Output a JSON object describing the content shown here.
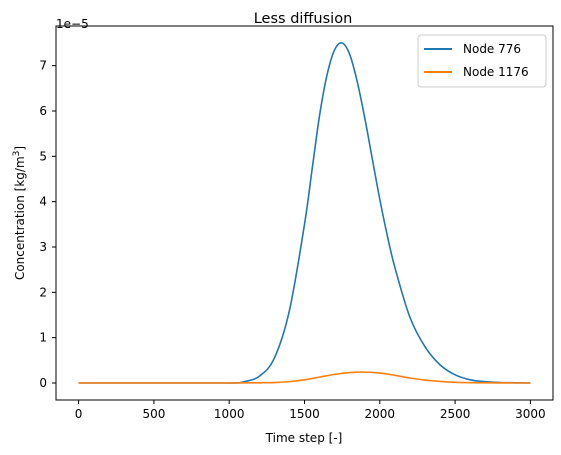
{
  "chart_data": {
    "type": "line",
    "title": "Less diffusion",
    "xlabel": "Time step [-]",
    "ylabel_text": "Concentration [kg/m",
    "ylabel_sup": "3",
    "ylabel_close": "]",
    "offset_text": "1e−5",
    "xlim": [
      -150,
      3150
    ],
    "ylim": [
      -0.375,
      7.875
    ],
    "x_ticks": [
      0,
      500,
      1000,
      1500,
      2000,
      2500,
      3000
    ],
    "x_tick_labels": [
      "0",
      "500",
      "1000",
      "1500",
      "2000",
      "2500",
      "3000"
    ],
    "y_ticks": [
      0,
      1,
      2,
      3,
      4,
      5,
      6,
      7
    ],
    "y_tick_labels": [
      "0",
      "1",
      "2",
      "3",
      "4",
      "5",
      "6",
      "7"
    ],
    "grid": false,
    "legend_position": "upper right",
    "series": [
      {
        "name": "Node 776",
        "color": "#1f77b4",
        "x": [
          0,
          500,
          1000,
          1100,
          1200,
          1300,
          1400,
          1500,
          1550,
          1600,
          1650,
          1700,
          1750,
          1800,
          1850,
          1900,
          1950,
          2000,
          2050,
          2100,
          2200,
          2300,
          2400,
          2500,
          2600,
          2700,
          2800,
          2900,
          3000
        ],
        "y": [
          0,
          0,
          0,
          0.03,
          0.15,
          0.55,
          1.6,
          3.5,
          4.7,
          5.9,
          6.8,
          7.35,
          7.5,
          7.25,
          6.65,
          5.85,
          4.95,
          4.05,
          3.25,
          2.55,
          1.45,
          0.8,
          0.4,
          0.18,
          0.07,
          0.03,
          0.01,
          0.005,
          0
        ]
      },
      {
        "name": "Node 1176",
        "color": "#ff7f0e",
        "x": [
          0,
          500,
          1000,
          1200,
          1300,
          1400,
          1500,
          1600,
          1700,
          1800,
          1900,
          2000,
          2100,
          2200,
          2300,
          2400,
          2500,
          2600,
          2700,
          2800,
          2900,
          3000
        ],
        "y": [
          0,
          0,
          0,
          0.005,
          0.01,
          0.03,
          0.07,
          0.13,
          0.19,
          0.23,
          0.24,
          0.22,
          0.17,
          0.11,
          0.065,
          0.035,
          0.015,
          0.007,
          0.003,
          0.001,
          0,
          0
        ]
      }
    ]
  }
}
